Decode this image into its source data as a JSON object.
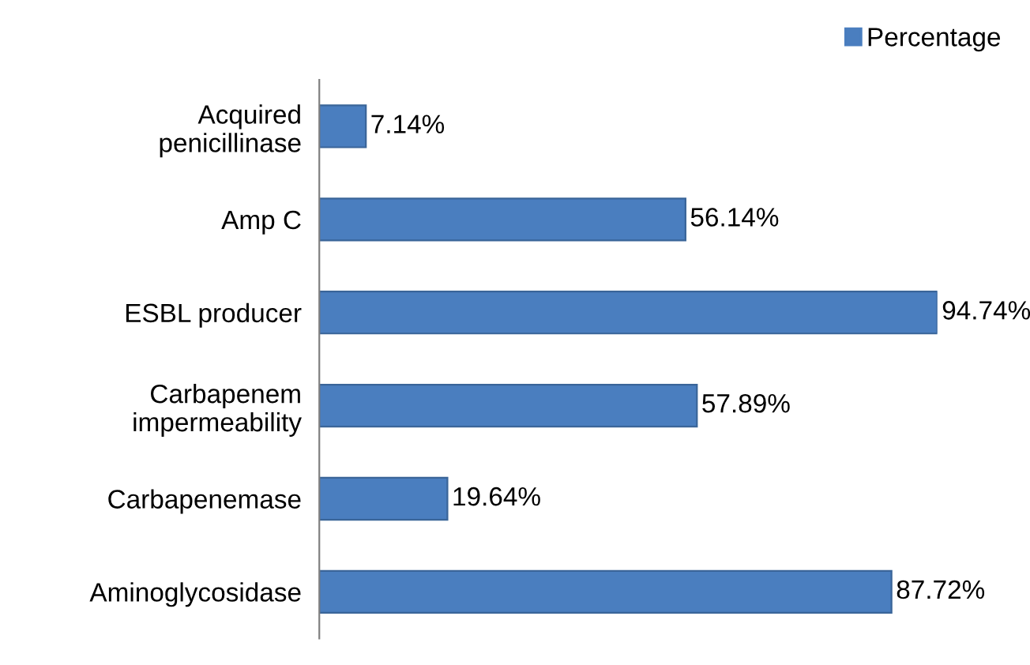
{
  "chart_data": {
    "type": "bar",
    "orientation": "horizontal",
    "categories": [
      "Acquired\npenicillinase",
      "Amp C",
      "ESBL producer",
      "Carbapenem\nimpermeability",
      "Carbapenemase",
      "Aminoglycosidase"
    ],
    "series": [
      {
        "name": "Percentage",
        "color": "#4a7ebf",
        "values": [
          7.14,
          56.14,
          94.74,
          57.89,
          19.64,
          87.72
        ],
        "value_labels": [
          "7.14%",
          "56.14%",
          "94.74%",
          "57.89%",
          "19.64%",
          "87.72%"
        ]
      }
    ],
    "legend": "top right",
    "tick_labels": "y",
    "grid": false
  }
}
